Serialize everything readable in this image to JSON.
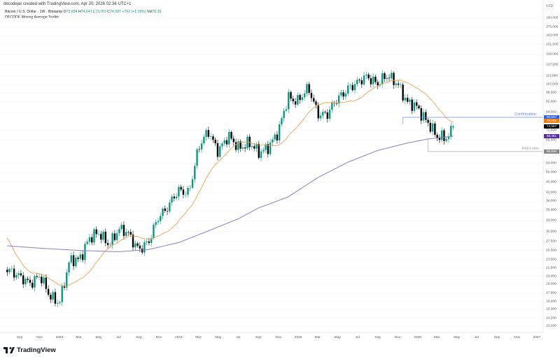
{
  "header": {
    "credit": "decodejar created with TradingView.com, Apr 20, 2026 02:36 UTC+1"
  },
  "legend": {
    "symbol": "Bitcoin / U.S. Dollar · 1W · Bitstamp",
    "open_label": "O",
    "open": "73,834",
    "high_label": "H",
    "high": "74,641",
    "low_label": "L",
    "low": "73,753",
    "close_label": "C",
    "close": "74,587",
    "change": "+762 (+1.03%)",
    "vol_label": "Vol",
    "vol": "78.35",
    "indicator": "DECODE Moving Average Toolkit"
  },
  "axis": {
    "currency": "USD",
    "y_ticks": [
      "190,000",
      "175,000",
      "163,000",
      "151,000",
      "139,000",
      "127,000",
      "115,000",
      "107,000",
      "99,500",
      "92,000",
      "84,000",
      "72,000",
      "66,000",
      "54,000",
      "50,000",
      "46,000",
      "42,000",
      "39,000",
      "36,000",
      "33,000",
      "30,000",
      "27,500",
      "25,500",
      "23,500",
      "21,900",
      "20,400",
      "19,000",
      "17,600",
      "16,400",
      "15,300",
      "14,200",
      "13,250"
    ],
    "x_ticks": [
      "Sep",
      "Nov",
      "2023",
      "Mar",
      "May",
      "Jul",
      "Sep",
      "Nov",
      "2024",
      "Mar",
      "May",
      "Jul",
      "Sep",
      "Nov",
      "2025",
      "Mar",
      "May",
      "Jul",
      "Sep",
      "Nov",
      "2026",
      "Mar",
      "May",
      "Jul",
      "Sep",
      "Nov",
      "2027"
    ]
  },
  "price_labels": [
    {
      "text": "80,537",
      "color": "#2962ff"
    },
    {
      "text": "78,058",
      "color": "#f57c00"
    },
    {
      "text": "74,587",
      "color": "#000000"
    },
    {
      "text": "68,451",
      "color": "#5b2a9e"
    },
    {
      "text": "59,930",
      "color": "#888888"
    }
  ],
  "annotations": {
    "confirmation": "Confirmation",
    "feb_lows": "Feb Lows"
  },
  "colors": {
    "up": "#089981",
    "down": "#000000",
    "ma_short": "#f2a251",
    "ma_long": "#8e7cc3",
    "confirmation": "#5b8cf0",
    "feb_lows": "#999999"
  },
  "chart_data": {
    "type": "candlestick",
    "symbol": "BTCUSD",
    "interval": "1W",
    "scale": "log",
    "ylim": [
      13250,
      190000
    ],
    "monthly_close": [
      [
        "2022-08-01",
        23300
      ],
      [
        "2022-09-01",
        20000
      ],
      [
        "2022-10-01",
        19400
      ],
      [
        "2022-11-01",
        20500
      ],
      [
        "2022-12-01",
        17100
      ],
      [
        "2023-01-01",
        16500
      ],
      [
        "2023-02-01",
        23100
      ],
      [
        "2023-03-01",
        23500
      ],
      [
        "2023-04-01",
        28500
      ],
      [
        "2023-05-01",
        29200
      ],
      [
        "2023-06-01",
        27200
      ],
      [
        "2023-07-01",
        30500
      ],
      [
        "2023-08-01",
        29200
      ],
      [
        "2023-09-01",
        26000
      ],
      [
        "2023-10-01",
        27000
      ],
      [
        "2023-11-01",
        34600
      ],
      [
        "2023-12-01",
        37700
      ],
      [
        "2024-01-01",
        42300
      ],
      [
        "2024-02-01",
        42600
      ],
      [
        "2024-03-01",
        61200
      ],
      [
        "2024-04-01",
        71300
      ],
      [
        "2024-05-01",
        60700
      ],
      [
        "2024-06-01",
        67500
      ],
      [
        "2024-07-01",
        62700
      ],
      [
        "2024-08-01",
        64600
      ],
      [
        "2024-09-01",
        58900
      ],
      [
        "2024-10-01",
        63300
      ],
      [
        "2024-11-01",
        70200
      ],
      [
        "2024-12-01",
        96400
      ],
      [
        "2025-01-01",
        93400
      ],
      [
        "2025-02-01",
        102400
      ],
      [
        "2025-03-01",
        84300
      ],
      [
        "2025-04-01",
        82500
      ],
      [
        "2025-05-01",
        94200
      ],
      [
        "2025-06-01",
        104600
      ],
      [
        "2025-07-01",
        107100
      ],
      [
        "2025-08-01",
        115700
      ],
      [
        "2025-09-01",
        108200
      ],
      [
        "2025-10-01",
        114000
      ],
      [
        "2025-11-01",
        109500
      ],
      [
        "2025-12-01",
        90400
      ],
      [
        "2026-01-01",
        87500
      ],
      [
        "2026-02-01",
        78000
      ],
      [
        "2026-03-01",
        67000
      ],
      [
        "2026-04-01",
        68000
      ],
      [
        "2026-04-20",
        74587
      ]
    ],
    "ma_long": [
      [
        "2022-08-01",
        26500
      ],
      [
        "2022-11-01",
        26000
      ],
      [
        "2023-03-01",
        25500
      ],
      [
        "2023-07-01",
        25200
      ],
      [
        "2023-10-01",
        25700
      ],
      [
        "2024-01-01",
        27300
      ],
      [
        "2024-04-01",
        30200
      ],
      [
        "2024-07-01",
        33500
      ],
      [
        "2024-09-01",
        36800
      ],
      [
        "2024-12-01",
        40500
      ],
      [
        "2025-03-01",
        47800
      ],
      [
        "2025-06-01",
        54600
      ],
      [
        "2025-09-01",
        60500
      ],
      [
        "2025-12-01",
        64500
      ],
      [
        "2026-02-01",
        66800
      ],
      [
        "2026-04-20",
        68451
      ]
    ],
    "levels": [
      {
        "name": "Confirmation",
        "value": 80537,
        "from": "2025-11-17"
      },
      {
        "name": "Feb Lows",
        "value": 59930,
        "from": "2026-02-02"
      }
    ]
  }
}
